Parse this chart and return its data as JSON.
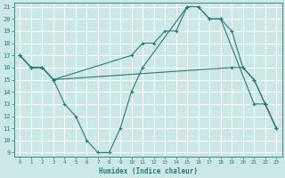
{
  "xlabel": "Humidex (Indice chaleur)",
  "bg_color": "#cce8e6",
  "grid_color": "#ffffff",
  "line_color": "#2a7a72",
  "xlim": [
    0,
    23
  ],
  "ylim": [
    9,
    21
  ],
  "xticks": [
    0,
    1,
    2,
    3,
    4,
    5,
    6,
    7,
    8,
    9,
    10,
    11,
    12,
    13,
    14,
    15,
    16,
    17,
    18,
    19,
    20,
    21,
    22,
    23
  ],
  "yticks": [
    9,
    10,
    11,
    12,
    13,
    14,
    15,
    16,
    17,
    18,
    19,
    20,
    21
  ],
  "series": [
    {
      "x": [
        0,
        1,
        2,
        3,
        4,
        5,
        6,
        7,
        8,
        9,
        10,
        11,
        15,
        16,
        17,
        18,
        21,
        22,
        23
      ],
      "y": [
        17,
        16,
        16,
        15,
        13,
        12,
        10,
        9,
        9,
        11,
        14,
        16,
        21,
        21,
        20,
        20,
        13,
        13,
        11
      ]
    },
    {
      "x": [
        0,
        1,
        2,
        3,
        10,
        11,
        12,
        13,
        14,
        15,
        16,
        17,
        18,
        19,
        20,
        21,
        22,
        23
      ],
      "y": [
        17,
        16,
        16,
        15,
        17,
        18,
        18,
        19,
        19,
        21,
        21,
        20,
        20,
        19,
        16,
        15,
        13,
        11
      ]
    },
    {
      "x": [
        0,
        1,
        2,
        3,
        19,
        20,
        21,
        22,
        23
      ],
      "y": [
        17,
        16,
        16,
        15,
        16,
        16,
        15,
        13,
        11
      ]
    }
  ]
}
